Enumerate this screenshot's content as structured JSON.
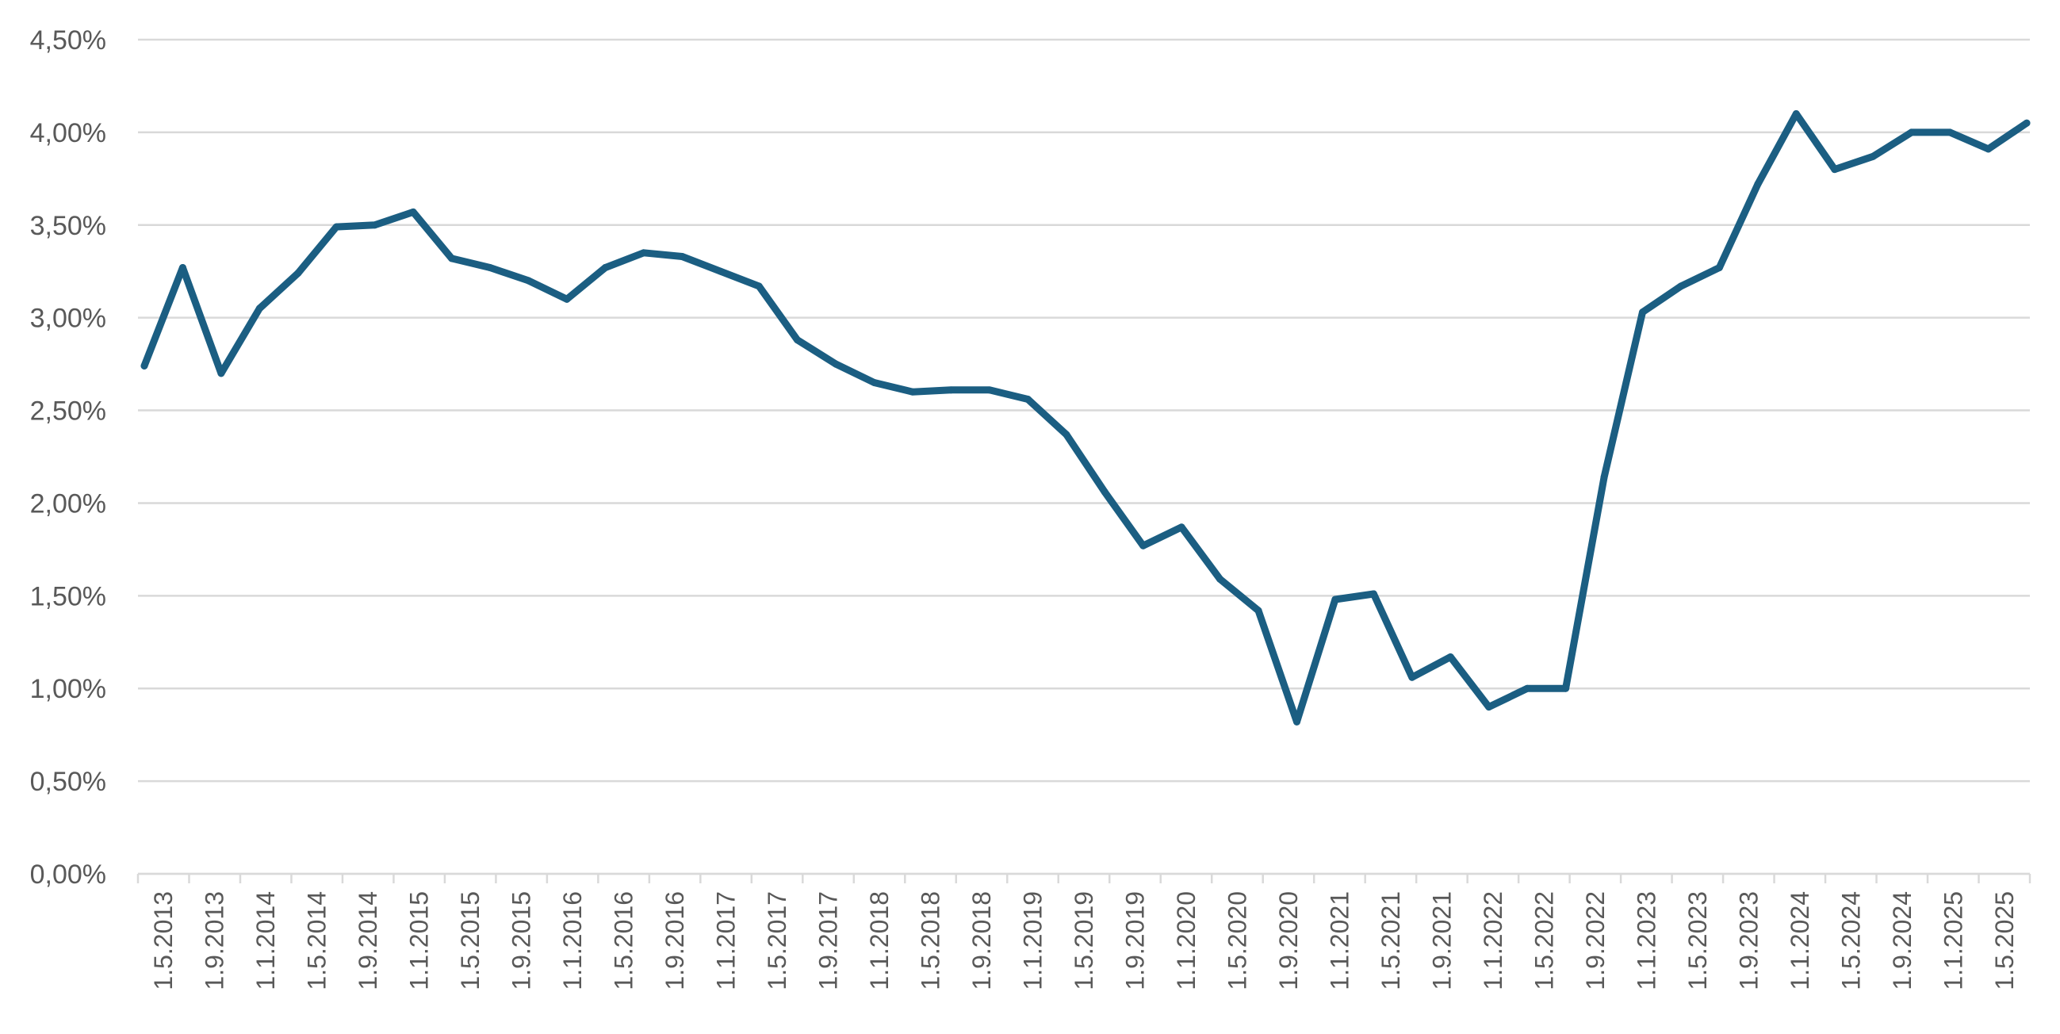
{
  "chart_data": {
    "type": "line",
    "title": "",
    "xlabel": "",
    "ylabel": "",
    "ylim": [
      0,
      4.5
    ],
    "y_ticks": [
      "0,00%",
      "0,50%",
      "1,00%",
      "1,50%",
      "2,00%",
      "2,50%",
      "3,00%",
      "3,50%",
      "4,00%",
      "4,50%"
    ],
    "x_tick_labels": [
      "1.5.2013",
      "1.9.2013",
      "1.1.2014",
      "1.5.2014",
      "1.9.2014",
      "1.1.2015",
      "1.5.2015",
      "1.9.2015",
      "1.1.2016",
      "1.5.2016",
      "1.9.2016",
      "1.1.2017",
      "1.5.2017",
      "1.9.2017",
      "1.1.2018",
      "1.5.2018",
      "1.9.2018",
      "1.1.2019",
      "1.5.2019",
      "1.9.2019",
      "1.1.2020",
      "1.5.2020",
      "1.9.2020",
      "1.1.2021",
      "1.5.2021",
      "1.9.2021",
      "1.1.2022",
      "1.5.2022",
      "1.9.2022",
      "1.1.2023",
      "1.5.2023",
      "1.9.2023",
      "1.1.2024",
      "1.5.2024",
      "1.9.2024",
      "1.1.2025",
      "1.5.2025"
    ],
    "grid": true,
    "legend": "none",
    "line_color": "#1b5e82",
    "series": [
      {
        "values": [
          2.74,
          3.27,
          2.7,
          3.05,
          3.24,
          3.49,
          3.5,
          3.57,
          3.32,
          3.27,
          3.2,
          3.1,
          3.27,
          3.35,
          3.33,
          3.25,
          3.17,
          2.88,
          2.75,
          2.65,
          2.6,
          2.61,
          2.61,
          2.56,
          2.37,
          2.06,
          1.77,
          1.87,
          1.59,
          1.42,
          0.82,
          1.48,
          1.51,
          1.06,
          1.17,
          0.9,
          1.0,
          1.0,
          2.14,
          3.03,
          3.17,
          3.27,
          3.72,
          4.1,
          3.8,
          3.87,
          4.0,
          4.0,
          3.91,
          4.05
        ]
      }
    ]
  }
}
